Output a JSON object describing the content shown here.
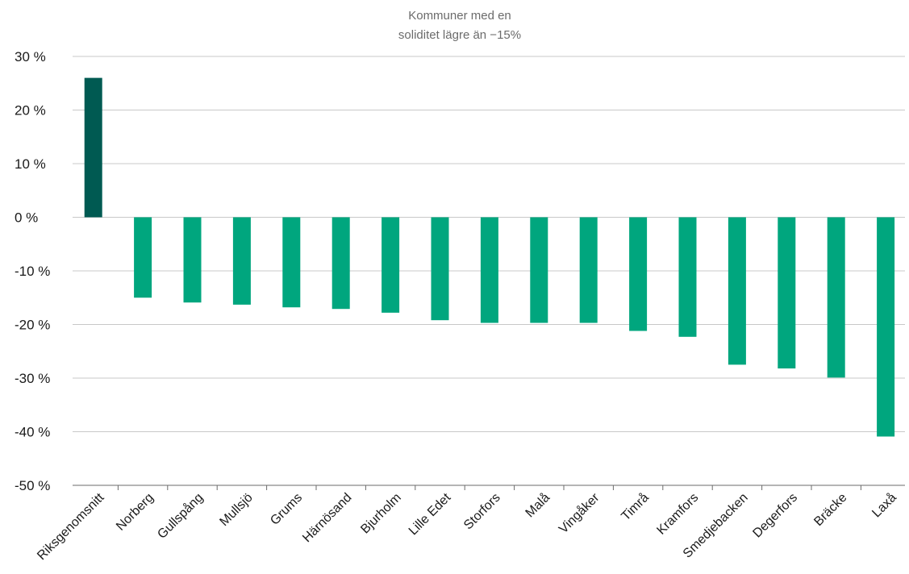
{
  "chart_data": {
    "type": "bar",
    "title_lines": [
      "Kommuner med en",
      "soliditet lägre än −15%"
    ],
    "xlabel": "",
    "ylabel": "",
    "ylim": [
      -50,
      30
    ],
    "yticks": [
      30,
      20,
      10,
      0,
      -10,
      -20,
      -30,
      -40,
      -50
    ],
    "ytick_labels": [
      "30 %",
      "20 %",
      "10 %",
      "0 %",
      "-10 %",
      "-20 %",
      "-30 %",
      "-40 %",
      "-50 %"
    ],
    "grid": true,
    "categories": [
      "Riksgenomsnitt",
      "Norberg",
      "Gullspång",
      "Mullsjö",
      "Grums",
      "Härnösand",
      "Bjurholm",
      "Lille Edet",
      "Storfors",
      "Malå",
      "Vingåker",
      "Timrå",
      "Kramfors",
      "Smedjebacken",
      "Degerfors",
      "Bräcke",
      "Laxå"
    ],
    "values": [
      26,
      -15,
      -15.9,
      -16.3,
      -16.8,
      -17.1,
      -17.8,
      -19.2,
      -19.7,
      -19.7,
      -19.7,
      -21.2,
      -22.3,
      -27.5,
      -28.2,
      -29.9,
      -40.9
    ],
    "colors": {
      "highlight": "#005a52",
      "bar": "#00a67e",
      "grid": "#c8c8c8",
      "axis": "#6b6b6b"
    }
  }
}
